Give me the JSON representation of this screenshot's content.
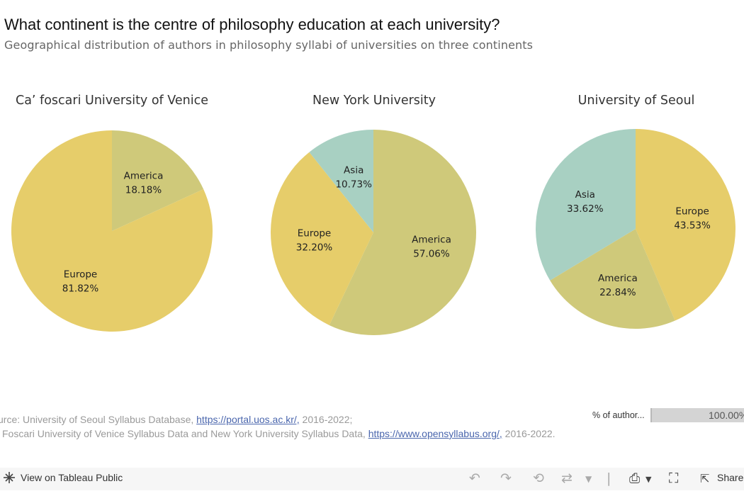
{
  "title": "What continent is the centre of philosophy education at each university?",
  "subtitle": "Geographical distribution of authors in philosophy syllabi of universities on three continents",
  "chart_data": [
    {
      "type": "pie",
      "title": "Ca’ foscari University of Venice",
      "slices": [
        {
          "label": "America",
          "value": 18.18,
          "display": "18.18%",
          "color": "#cfc97a"
        },
        {
          "label": "Europe",
          "value": 81.82,
          "display": "81.82%",
          "color": "#e6cd6a"
        }
      ]
    },
    {
      "type": "pie",
      "title": "New York University",
      "slices": [
        {
          "label": "America",
          "value": 57.06,
          "display": "57.06%",
          "color": "#cfc97a"
        },
        {
          "label": "Europe",
          "value": 32.2,
          "display": "32.20%",
          "color": "#e6cd6a"
        },
        {
          "label": "Asia",
          "value": 10.73,
          "display": "10.73%",
          "color": "#a8d0c2"
        }
      ]
    },
    {
      "type": "pie",
      "title": "University of Seoul",
      "slices": [
        {
          "label": "Europe",
          "value": 43.53,
          "display": "43.53%",
          "color": "#e6cd6a"
        },
        {
          "label": "America",
          "value": 22.84,
          "display": "22.84%",
          "color": "#cfc97a"
        },
        {
          "label": "Asia",
          "value": 33.62,
          "display": "33.62%",
          "color": "#a8d0c2"
        }
      ]
    }
  ],
  "source": {
    "line1_prefix": "urce: University of Seoul Syllabus Database, ",
    "line1_link": "https://portal.uos.ac.kr/,",
    "line1_suffix": " 2016-2022;",
    "line2_prefix": " Foscari University of Venice Syllabus Data and New York University Syllabus Data, ",
    "line2_link": "https://www.opensyllabus.org/,",
    "line2_suffix": " 2016-2022."
  },
  "legend": {
    "label": "% of author...",
    "value": "100.00%"
  },
  "toolbar": {
    "view_label": "View on Tableau Public",
    "share_label": "Share",
    "icons": [
      "undo-icon",
      "redo-icon",
      "revert-icon",
      "pause-icon",
      "download-icon",
      "fullscreen-icon",
      "share-icon"
    ]
  }
}
